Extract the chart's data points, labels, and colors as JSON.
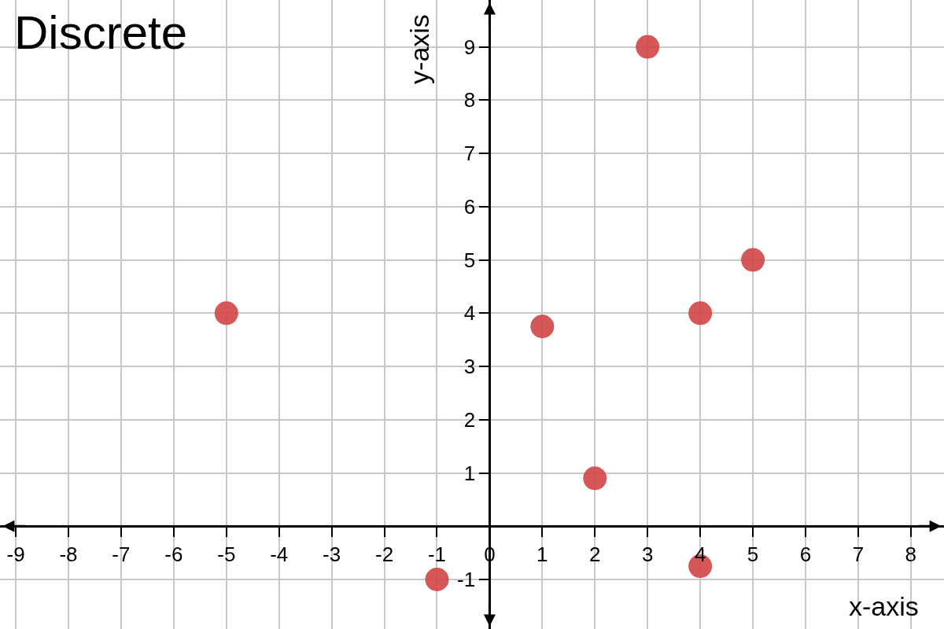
{
  "chart_data": {
    "type": "scatter",
    "title": "Discrete",
    "xlabel": "x-axis",
    "ylabel": "y-axis",
    "x": [
      -5,
      -1,
      1,
      2,
      3,
      4,
      4,
      5
    ],
    "values": [
      4,
      -1,
      3.75,
      0.9,
      9,
      4,
      -0.75,
      5
    ],
    "color": "#d24545",
    "marker": "circle",
    "xlim": [
      -9.3,
      8.63
    ],
    "ylim": [
      -1.93,
      9.88
    ],
    "xticks": [
      -9,
      -8,
      -7,
      -6,
      -5,
      -4,
      -3,
      -2,
      -1,
      0,
      1,
      2,
      3,
      4,
      5,
      6,
      7,
      8
    ],
    "yticks": [
      -1,
      1,
      2,
      3,
      4,
      5,
      6,
      7,
      8,
      9
    ],
    "grid": true
  }
}
